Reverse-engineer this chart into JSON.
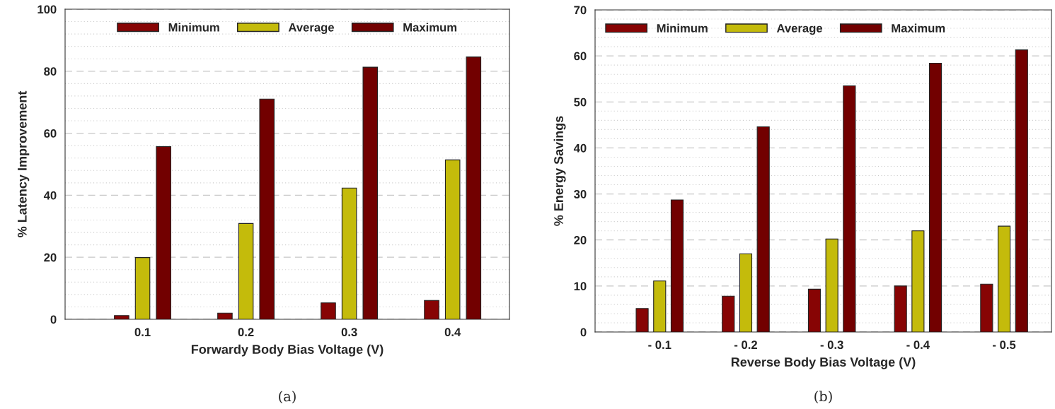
{
  "chart_data": [
    {
      "type": "bar",
      "xlabel": "Forwardy Body Bias Voltage (V)",
      "ylabel": "% Latency Improvement",
      "categories": [
        "0.1",
        "0.2",
        "0.3",
        "0.4"
      ],
      "series": [
        {
          "name": "Minimum",
          "color": "#870404",
          "values": [
            1.2,
            2.0,
            5.3,
            6.1
          ]
        },
        {
          "name": "Average",
          "color": "#c4bb0b",
          "values": [
            19.9,
            30.9,
            42.3,
            51.4
          ]
        },
        {
          "name": "Maximum",
          "color": "#720000",
          "values": [
            55.7,
            71.0,
            81.3,
            84.6
          ]
        }
      ],
      "ylim": [
        0,
        100
      ],
      "yticks": [
        0,
        20,
        40,
        60,
        80,
        100
      ],
      "grid": "y",
      "legend": "top",
      "annotations": [
        "(a)"
      ]
    },
    {
      "type": "bar",
      "xlabel": "Reverse Body Bias Voltage (V)",
      "ylabel": "% Energy Savings",
      "categories": [
        "- 0.1",
        "- 0.2",
        "- 0.3",
        "- 0.4",
        "- 0.5"
      ],
      "series": [
        {
          "name": "Minimum",
          "color": "#870404",
          "values": [
            5.1,
            7.8,
            9.3,
            10.0,
            10.4
          ]
        },
        {
          "name": "Average",
          "color": "#c4bb0b",
          "values": [
            11.1,
            17.0,
            20.2,
            22.0,
            23.0
          ]
        },
        {
          "name": "Maximum",
          "color": "#720000",
          "values": [
            28.7,
            44.6,
            53.5,
            58.4,
            61.3
          ]
        }
      ],
      "ylim": [
        0,
        70
      ],
      "yticks": [
        0,
        10,
        20,
        30,
        40,
        50,
        60,
        70
      ],
      "grid": "y",
      "legend": "top left",
      "annotations": [
        "(b)"
      ]
    }
  ]
}
